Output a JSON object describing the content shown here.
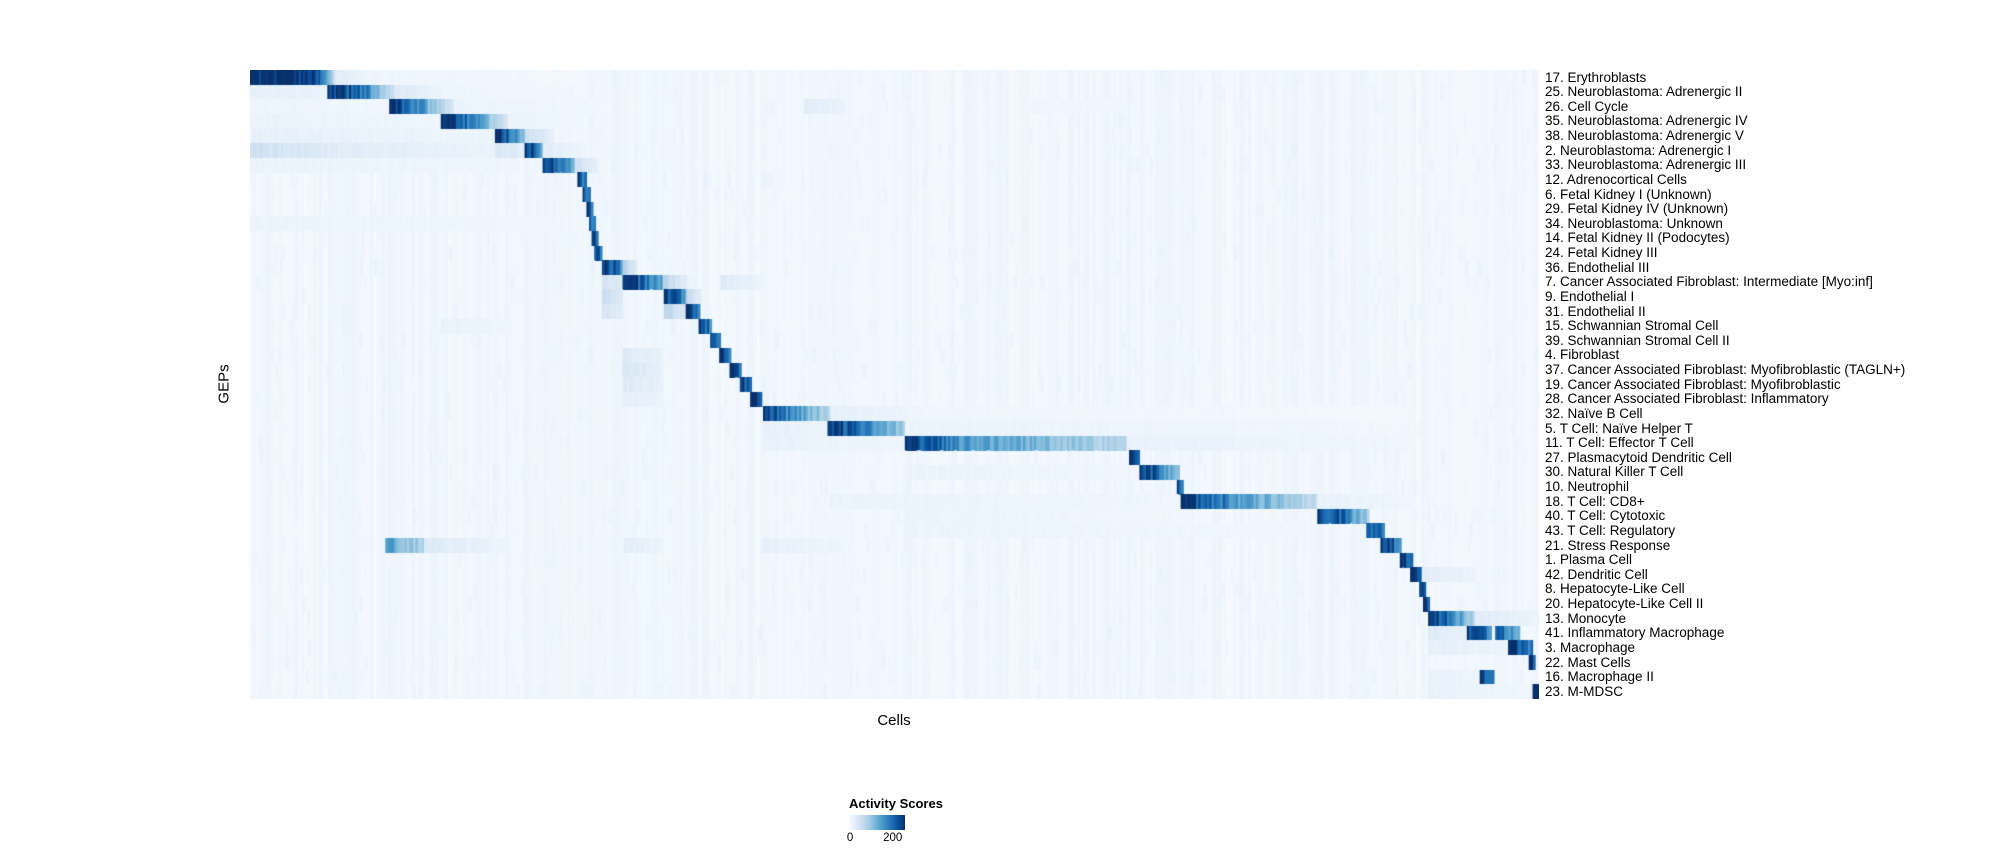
{
  "chart_data": {
    "type": "heatmap",
    "title": "",
    "xlabel": "Cells",
    "ylabel": "GEPs",
    "legend_title": "Activity Scores",
    "colorbar_tick_min": "0",
    "colorbar_tick_max": "200",
    "value_range": [
      0,
      200
    ],
    "colormap": "Blues",
    "colormap_stops": [
      "#f7fbff",
      "#deebf7",
      "#c6dbef",
      "#9ecae1",
      "#6baed6",
      "#4292c6",
      "#2171b5",
      "#08519c",
      "#08306b"
    ],
    "grid": false,
    "x_tick_labels": [],
    "segment_format": "[x_start_fraction, x_end_fraction, value_at_start, value_at_end] on 0-200 activity scale",
    "column_washes": [
      [
        0.222,
        0.274,
        9
      ],
      [
        0.288,
        0.335,
        7
      ],
      [
        0.398,
        0.51,
        5
      ],
      [
        0.914,
        1.0,
        6
      ]
    ],
    "rows": [
      {
        "label": "17. Erythroblasts",
        "segments": [
          [
            0.0,
            0.048,
            215,
            200
          ],
          [
            0.048,
            0.066,
            190,
            40
          ],
          [
            0.066,
            0.09,
            25,
            8
          ],
          [
            0.09,
            0.26,
            9,
            5
          ]
        ]
      },
      {
        "label": "25. Neuroblastoma: Adrenergic II",
        "segments": [
          [
            0.0,
            0.06,
            16,
            12
          ],
          [
            0.06,
            0.092,
            210,
            130
          ],
          [
            0.092,
            0.112,
            120,
            35
          ],
          [
            0.112,
            0.15,
            28,
            10
          ],
          [
            0.15,
            0.26,
            9,
            6
          ]
        ]
      },
      {
        "label": "26. Cell Cycle",
        "segments": [
          [
            0.0,
            0.108,
            10,
            8
          ],
          [
            0.108,
            0.138,
            210,
            100
          ],
          [
            0.138,
            0.158,
            90,
            25
          ],
          [
            0.158,
            0.28,
            12,
            6
          ],
          [
            0.43,
            0.46,
            22,
            12
          ],
          [
            0.6,
            0.68,
            8,
            6
          ]
        ]
      },
      {
        "label": "35. Neuroblastoma: Adrenergic IV",
        "segments": [
          [
            0.0,
            0.148,
            12,
            9
          ],
          [
            0.148,
            0.182,
            210,
            100
          ],
          [
            0.182,
            0.2,
            90,
            22
          ],
          [
            0.2,
            0.26,
            12,
            7
          ]
        ]
      },
      {
        "label": "38. Neuroblastoma: Adrenergic V",
        "segments": [
          [
            0.0,
            0.19,
            16,
            10
          ],
          [
            0.19,
            0.213,
            200,
            90
          ],
          [
            0.213,
            0.235,
            45,
            14
          ]
        ]
      },
      {
        "label": "2. Neuroblastoma: Adrenergic I",
        "segments": [
          [
            0.0,
            0.06,
            40,
            25
          ],
          [
            0.06,
            0.19,
            22,
            12
          ],
          [
            0.19,
            0.213,
            30,
            20
          ],
          [
            0.213,
            0.227,
            210,
            110
          ],
          [
            0.227,
            0.26,
            22,
            9
          ]
        ]
      },
      {
        "label": "33. Neuroblastoma: Adrenergic III",
        "segments": [
          [
            0.0,
            0.21,
            12,
            8
          ],
          [
            0.227,
            0.252,
            200,
            95
          ],
          [
            0.252,
            0.27,
            40,
            13
          ]
        ]
      },
      {
        "label": "12. Adrenocortical Cells",
        "segments": [
          [
            0.254,
            0.261,
            190,
            120
          ]
        ]
      },
      {
        "label": "6. Fetal Kidney I (Unknown)",
        "segments": [
          [
            0.258,
            0.264,
            190,
            120
          ]
        ]
      },
      {
        "label": "29. Fetal Kidney IV (Unknown)",
        "segments": [
          [
            0.261,
            0.266,
            180,
            115
          ]
        ]
      },
      {
        "label": "34. Neuroblastoma: Unknown",
        "segments": [
          [
            0.0,
            0.23,
            12,
            7
          ],
          [
            0.263,
            0.268,
            180,
            115
          ]
        ]
      },
      {
        "label": "14. Fetal Kidney II (Podocytes)",
        "segments": [
          [
            0.265,
            0.27,
            190,
            120
          ]
        ]
      },
      {
        "label": "24. Fetal Kidney III",
        "segments": [
          [
            0.267,
            0.273,
            190,
            125
          ]
        ]
      },
      {
        "label": "36. Endothelial III",
        "segments": [
          [
            0.273,
            0.289,
            210,
            120
          ],
          [
            0.289,
            0.3,
            60,
            18
          ]
        ]
      },
      {
        "label": "7. Cancer Associated Fibroblast: Intermediate [Myo:inf]",
        "segments": [
          [
            0.273,
            0.289,
            35,
            20
          ],
          [
            0.289,
            0.32,
            205,
            105
          ],
          [
            0.32,
            0.34,
            55,
            16
          ],
          [
            0.365,
            0.397,
            25,
            12
          ]
        ]
      },
      {
        "label": "9. Endothelial I",
        "segments": [
          [
            0.273,
            0.289,
            45,
            25
          ],
          [
            0.321,
            0.338,
            205,
            115
          ],
          [
            0.338,
            0.35,
            55,
            18
          ]
        ]
      },
      {
        "label": "31. Endothelial II",
        "segments": [
          [
            0.273,
            0.289,
            35,
            20
          ],
          [
            0.321,
            0.338,
            55,
            30
          ],
          [
            0.338,
            0.349,
            205,
            125
          ]
        ]
      },
      {
        "label": "15. Schwannian Stromal Cell",
        "segments": [
          [
            0.148,
            0.2,
            14,
            8
          ],
          [
            0.348,
            0.358,
            205,
            125
          ]
        ]
      },
      {
        "label": "39. Schwannian Stromal Cell II",
        "segments": [
          [
            0.357,
            0.365,
            205,
            125
          ]
        ]
      },
      {
        "label": "4. Fibroblast",
        "segments": [
          [
            0.289,
            0.32,
            26,
            14
          ],
          [
            0.364,
            0.373,
            205,
            125
          ]
        ]
      },
      {
        "label": "37. Cancer Associated Fibroblast: Myofibroblastic (TAGLN+)",
        "segments": [
          [
            0.289,
            0.32,
            32,
            16
          ],
          [
            0.372,
            0.381,
            205,
            125
          ]
        ]
      },
      {
        "label": "19. Cancer Associated Fibroblast: Myofibroblastic",
        "segments": [
          [
            0.289,
            0.32,
            26,
            14
          ],
          [
            0.38,
            0.389,
            205,
            125
          ]
        ]
      },
      {
        "label": "28. Cancer Associated Fibroblast: Inflammatory",
        "segments": [
          [
            0.289,
            0.32,
            20,
            11
          ],
          [
            0.388,
            0.397,
            205,
            125
          ]
        ]
      },
      {
        "label": "32. Naïve B Cell",
        "segments": [
          [
            0.398,
            0.414,
            195,
            150
          ],
          [
            0.414,
            0.45,
            140,
            55
          ],
          [
            0.45,
            0.52,
            18,
            9
          ],
          [
            0.52,
            0.9,
            8,
            5
          ]
        ]
      },
      {
        "label": "5. T Cell: Naïve Helper T",
        "segments": [
          [
            0.398,
            0.448,
            16,
            10
          ],
          [
            0.448,
            0.472,
            205,
            155
          ],
          [
            0.472,
            0.508,
            145,
            65
          ],
          [
            0.508,
            0.9,
            12,
            7
          ]
        ]
      },
      {
        "label": "11. T Cell: Effector T Cell",
        "segments": [
          [
            0.398,
            0.508,
            14,
            9
          ],
          [
            0.508,
            0.545,
            195,
            135
          ],
          [
            0.545,
            0.68,
            125,
            55
          ],
          [
            0.68,
            0.9,
            14,
            8
          ]
        ]
      },
      {
        "label": "27. Plasmacytoid Dendritic Cell",
        "segments": [
          [
            0.682,
            0.69,
            205,
            150
          ]
        ]
      },
      {
        "label": "30. Natural Killer T Cell",
        "segments": [
          [
            0.508,
            0.68,
            12,
            8
          ],
          [
            0.69,
            0.702,
            205,
            160
          ],
          [
            0.702,
            0.721,
            150,
            65
          ]
        ]
      },
      {
        "label": "10. Neutrophil",
        "segments": [
          [
            0.719,
            0.724,
            195,
            145
          ]
        ]
      },
      {
        "label": "18. T Cell: CD8+",
        "segments": [
          [
            0.45,
            0.72,
            12,
            8
          ],
          [
            0.722,
            0.758,
            195,
            135
          ],
          [
            0.758,
            0.828,
            125,
            50
          ],
          [
            0.828,
            0.9,
            14,
            8
          ]
        ]
      },
      {
        "label": "40. T Cell: Cytotoxic",
        "segments": [
          [
            0.508,
            0.72,
            11,
            7
          ],
          [
            0.828,
            0.85,
            195,
            145
          ],
          [
            0.85,
            0.868,
            135,
            65
          ]
        ]
      },
      {
        "label": "43. T Cell: Regulatory",
        "segments": [
          [
            0.508,
            0.82,
            11,
            7
          ],
          [
            0.866,
            0.88,
            195,
            120
          ]
        ]
      },
      {
        "label": "21. Stress Response",
        "segments": [
          [
            0.105,
            0.135,
            115,
            60
          ],
          [
            0.135,
            0.2,
            25,
            10
          ],
          [
            0.29,
            0.32,
            20,
            11
          ],
          [
            0.398,
            0.46,
            16,
            9
          ],
          [
            0.877,
            0.893,
            205,
            125
          ]
        ]
      },
      {
        "label": "1. Plasma Cell",
        "segments": [
          [
            0.892,
            0.902,
            205,
            135
          ]
        ]
      },
      {
        "label": "42. Dendritic Cell",
        "segments": [
          [
            0.9,
            0.909,
            205,
            135
          ],
          [
            0.909,
            0.95,
            20,
            11
          ]
        ]
      },
      {
        "label": "8. Hepatocyte-Like Cell",
        "segments": [
          [
            0.907,
            0.912,
            195,
            135
          ]
        ]
      },
      {
        "label": "20. Hepatocyte-Like Cell II",
        "segments": [
          [
            0.91,
            0.915,
            195,
            135
          ]
        ]
      },
      {
        "label": "13. Monocyte",
        "segments": [
          [
            0.914,
            0.932,
            205,
            145
          ],
          [
            0.932,
            0.95,
            135,
            55
          ],
          [
            0.95,
            1.0,
            22,
            12
          ]
        ]
      },
      {
        "label": "41. Inflammatory Macrophage",
        "segments": [
          [
            0.914,
            0.944,
            26,
            14
          ],
          [
            0.944,
            0.963,
            195,
            125
          ],
          [
            0.966,
            0.985,
            165,
            95
          ]
        ]
      },
      {
        "label": "3. Macrophage",
        "segments": [
          [
            0.914,
            0.976,
            18,
            11
          ],
          [
            0.976,
            0.995,
            205,
            135
          ]
        ]
      },
      {
        "label": "22. Mast Cells",
        "segments": [
          [
            0.992,
            0.997,
            205,
            155
          ]
        ]
      },
      {
        "label": "16. Macrophage II",
        "segments": [
          [
            0.914,
            0.954,
            15,
            9
          ],
          [
            0.954,
            0.965,
            185,
            125
          ]
        ]
      },
      {
        "label": "23. M-MDSC",
        "segments": [
          [
            0.914,
            0.995,
            14,
            8
          ],
          [
            0.995,
            1.0,
            210,
            170
          ]
        ]
      }
    ]
  }
}
